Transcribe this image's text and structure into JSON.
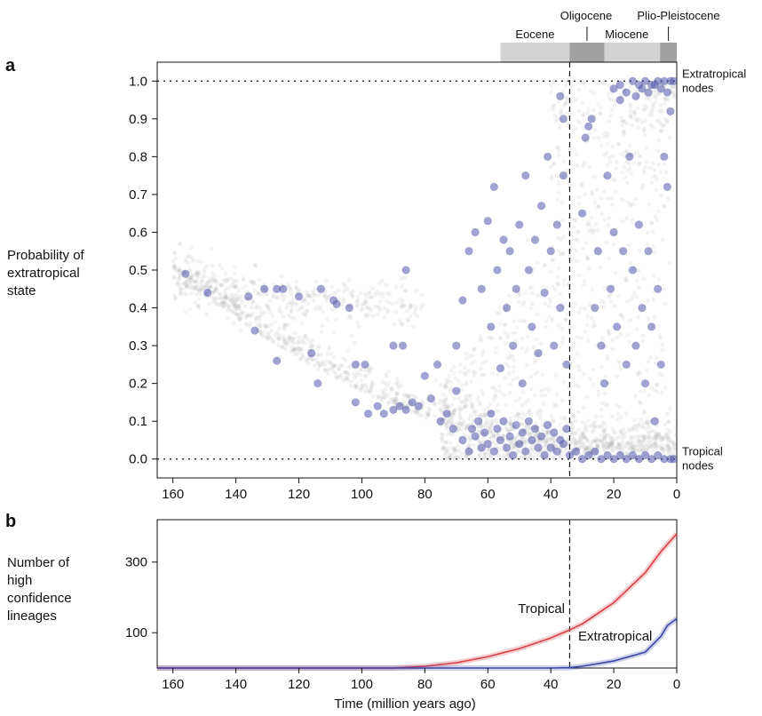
{
  "chart_data": [
    {
      "panel": "a",
      "type": "scatter",
      "ylabel": [
        "Probability of",
        "extratropical",
        "state"
      ],
      "xlim": [
        165,
        0
      ],
      "ylim": [
        -0.05,
        1.05
      ],
      "xticks": [
        "160",
        "140",
        "120",
        "100",
        "80",
        "60",
        "40",
        "20",
        "0"
      ],
      "yticks": [
        "0.0",
        "0.1",
        "0.2",
        "0.3",
        "0.4",
        "0.5",
        "0.6",
        "0.7",
        "0.8",
        "0.9",
        "1.0"
      ],
      "reference_lines": {
        "y_dotted": [
          0,
          1
        ],
        "x_dashed": 34
      },
      "epochs": [
        {
          "name": "Eocene",
          "start": 56,
          "end": 34,
          "shade": "#d3d3d3"
        },
        {
          "name": "Oligocene",
          "start": 34,
          "end": 23,
          "shade": "#a0a0a0"
        },
        {
          "name": "Miocene",
          "start": 23,
          "end": 5.3,
          "shade": "#d3d3d3"
        },
        {
          "name": "Plio-Pleistocene",
          "start": 5.3,
          "end": 0,
          "shade": "#a0a0a0"
        }
      ],
      "annotations": [
        {
          "text": [
            "Extratropical",
            "nodes"
          ],
          "x": 0,
          "y": 1.0
        },
        {
          "text": [
            "Tropical",
            "nodes"
          ],
          "x": 0,
          "y": 0.0
        }
      ],
      "background_series_color": "#9a9a9a",
      "node_color": "#5358ad",
      "nodes": [
        [
          156,
          0.49
        ],
        [
          149,
          0.44
        ],
        [
          136,
          0.43
        ],
        [
          131,
          0.45
        ],
        [
          127,
          0.45
        ],
        [
          125,
          0.45
        ],
        [
          120,
          0.43
        ],
        [
          113,
          0.45
        ],
        [
          109,
          0.42
        ],
        [
          108,
          0.41
        ],
        [
          104,
          0.4
        ],
        [
          134,
          0.34
        ],
        [
          127,
          0.26
        ],
        [
          116,
          0.28
        ],
        [
          114,
          0.2
        ],
        [
          102,
          0.25
        ],
        [
          99,
          0.25
        ],
        [
          90,
          0.3
        ],
        [
          87,
          0.3
        ],
        [
          86,
          0.5
        ],
        [
          80,
          0.22
        ],
        [
          76,
          0.25
        ],
        [
          102,
          0.15
        ],
        [
          98,
          0.12
        ],
        [
          95,
          0.14
        ],
        [
          93,
          0.12
        ],
        [
          90,
          0.13
        ],
        [
          88,
          0.14
        ],
        [
          86,
          0.13
        ],
        [
          84,
          0.15
        ],
        [
          82,
          0.14
        ],
        [
          78,
          0.16
        ],
        [
          75,
          0.1
        ],
        [
          73,
          0.12
        ],
        [
          71,
          0.08
        ],
        [
          70,
          0.18
        ],
        [
          68,
          0.05
        ],
        [
          66,
          0.02
        ],
        [
          64,
          0.06
        ],
        [
          62,
          0.03
        ],
        [
          60,
          0.04
        ],
        [
          58,
          0.02
        ],
        [
          56,
          0.05
        ],
        [
          54,
          0.03
        ],
        [
          52,
          0.01
        ],
        [
          50,
          0.04
        ],
        [
          48,
          0.02
        ],
        [
          46,
          0.05
        ],
        [
          44,
          0.03
        ],
        [
          42,
          0.01
        ],
        [
          40,
          0.03
        ],
        [
          38,
          0.02
        ],
        [
          36,
          0.04
        ],
        [
          34,
          0.01
        ],
        [
          32,
          0.02
        ],
        [
          30,
          0.0
        ],
        [
          28,
          0.01
        ],
        [
          26,
          0.02
        ],
        [
          24,
          0.0
        ],
        [
          22,
          0.01
        ],
        [
          20,
          0.0
        ],
        [
          18,
          0.01
        ],
        [
          16,
          0.0
        ],
        [
          14,
          0.01
        ],
        [
          12,
          0.0
        ],
        [
          10,
          0.01
        ],
        [
          8,
          0.0
        ],
        [
          6,
          0.01
        ],
        [
          4,
          0.0
        ],
        [
          2,
          0.0
        ],
        [
          1,
          0.0
        ],
        [
          65,
          0.08
        ],
        [
          63,
          0.1
        ],
        [
          61,
          0.07
        ],
        [
          59,
          0.12
        ],
        [
          57,
          0.08
        ],
        [
          55,
          0.1
        ],
        [
          53,
          0.06
        ],
        [
          51,
          0.09
        ],
        [
          49,
          0.07
        ],
        [
          47,
          0.1
        ],
        [
          45,
          0.08
        ],
        [
          43,
          0.06
        ],
        [
          41,
          0.09
        ],
        [
          39,
          0.07
        ],
        [
          37,
          0.05
        ],
        [
          35,
          0.08
        ],
        [
          70,
          0.3
        ],
        [
          68,
          0.42
        ],
        [
          66,
          0.55
        ],
        [
          64,
          0.6
        ],
        [
          62,
          0.45
        ],
        [
          60,
          0.63
        ],
        [
          59,
          0.35
        ],
        [
          58,
          0.72
        ],
        [
          57,
          0.5
        ],
        [
          56,
          0.24
        ],
        [
          55,
          0.58
        ],
        [
          54,
          0.4
        ],
        [
          53,
          0.55
        ],
        [
          52,
          0.3
        ],
        [
          51,
          0.45
        ],
        [
          50,
          0.62
        ],
        [
          49,
          0.2
        ],
        [
          48,
          0.75
        ],
        [
          47,
          0.5
        ],
        [
          46,
          0.35
        ],
        [
          45,
          0.58
        ],
        [
          44,
          0.28
        ],
        [
          43,
          0.67
        ],
        [
          42,
          0.44
        ],
        [
          41,
          0.8
        ],
        [
          40,
          0.55
        ],
        [
          39,
          0.3
        ],
        [
          38,
          0.62
        ],
        [
          37,
          0.4
        ],
        [
          36,
          0.75
        ],
        [
          35,
          0.25
        ],
        [
          36,
          0.9
        ],
        [
          37,
          0.96
        ],
        [
          30,
          0.65
        ],
        [
          29,
          0.85
        ],
        [
          28,
          0.88
        ],
        [
          27,
          0.9
        ],
        [
          26,
          0.4
        ],
        [
          25,
          0.55
        ],
        [
          24,
          0.3
        ],
        [
          23,
          0.2
        ],
        [
          22,
          0.75
        ],
        [
          21,
          0.45
        ],
        [
          20,
          0.6
        ],
        [
          19,
          0.35
        ],
        [
          18,
          0.95
        ],
        [
          17,
          0.55
        ],
        [
          16,
          0.25
        ],
        [
          15,
          0.8
        ],
        [
          14,
          0.5
        ],
        [
          13,
          0.3
        ],
        [
          12,
          0.62
        ],
        [
          11,
          0.4
        ],
        [
          10,
          0.2
        ],
        [
          9,
          0.55
        ],
        [
          8,
          0.35
        ],
        [
          7,
          0.1
        ],
        [
          6,
          0.45
        ],
        [
          5,
          0.25
        ],
        [
          4,
          0.8
        ],
        [
          3,
          0.72
        ],
        [
          2,
          0.92
        ],
        [
          20,
          0.98
        ],
        [
          18,
          0.99
        ],
        [
          16,
          0.97
        ],
        [
          14,
          1.0
        ],
        [
          12,
          0.99
        ],
        [
          10,
          1.0
        ],
        [
          8,
          0.99
        ],
        [
          6,
          1.0
        ],
        [
          4,
          1.0
        ],
        [
          2,
          1.0
        ],
        [
          1,
          1.0
        ],
        [
          13,
          0.96
        ],
        [
          11,
          0.98
        ],
        [
          9,
          0.97
        ],
        [
          7,
          0.99
        ],
        [
          5,
          0.98
        ],
        [
          3,
          0.97
        ]
      ]
    },
    {
      "panel": "b",
      "type": "line",
      "ylabel": [
        "Number of",
        "high",
        "confidence",
        "lineages"
      ],
      "xlabel": "Time (million years ago)",
      "xlim": [
        165,
        0
      ],
      "ylim": [
        0,
        420
      ],
      "xticks": [
        "160",
        "140",
        "120",
        "100",
        "80",
        "60",
        "40",
        "20",
        "0"
      ],
      "yticks": [
        "100",
        "300"
      ],
      "reference_lines": {
        "x_dashed": 34
      },
      "series": [
        {
          "name": "Tropical",
          "color": "#d94048",
          "x": [
            165,
            90,
            80,
            70,
            60,
            50,
            40,
            34,
            30,
            20,
            10,
            5,
            0
          ],
          "values": [
            0,
            0,
            5,
            15,
            32,
            55,
            85,
            108,
            125,
            185,
            270,
            330,
            380
          ]
        },
        {
          "name": "Extratropical",
          "color": "#3b46a8",
          "x": [
            165,
            40,
            34,
            30,
            20,
            10,
            5,
            3,
            0
          ],
          "values": [
            0,
            0,
            1,
            5,
            20,
            45,
            90,
            120,
            140
          ]
        }
      ]
    }
  ]
}
